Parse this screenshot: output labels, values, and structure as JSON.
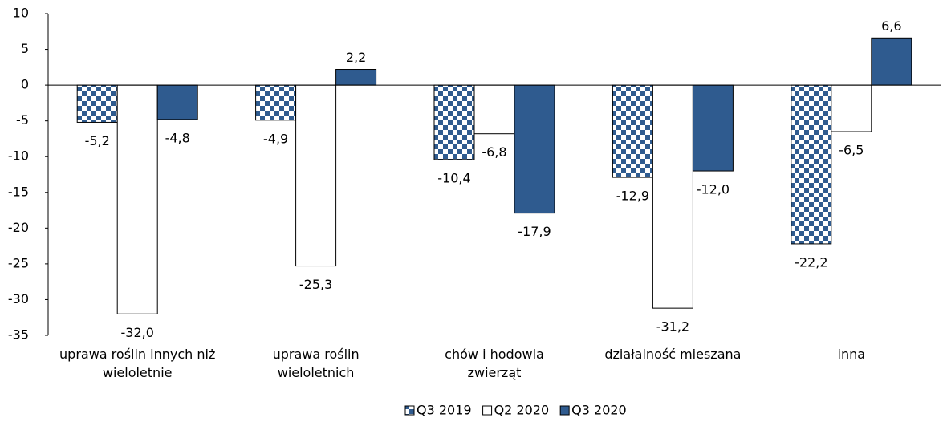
{
  "chart_data": {
    "type": "bar",
    "categories": [
      "uprawa roślin innych niż wieloletnie",
      "uprawa roślin wieloletnich",
      "chów i hodowla zwierząt",
      "działalność mieszana",
      "inna"
    ],
    "series": [
      {
        "name": "Q3 2019",
        "color": "#2f5b8f",
        "pattern": "checker",
        "values": [
          -5.2,
          -4.9,
          -10.4,
          -12.9,
          -22.2
        ],
        "value_labels": [
          "-5,2",
          "-4,9",
          "-10,4",
          "-12,9",
          "-22,2"
        ]
      },
      {
        "name": "Q2 2020",
        "color": "#ffffff",
        "values": [
          -32.0,
          -25.3,
          -6.8,
          -31.2,
          -6.5
        ],
        "value_labels": [
          "-32,0",
          "-25,3",
          "-6,8",
          "-31,2",
          "-6,5"
        ]
      },
      {
        "name": "Q3 2020",
        "color": "#2f5b8f",
        "values": [
          -4.8,
          2.2,
          -17.9,
          -12.0,
          6.6
        ],
        "value_labels": [
          "-4,8",
          "2,2",
          "-17,9",
          "-12,0",
          "6,6"
        ]
      }
    ],
    "ylim": [
      -35,
      10
    ],
    "yticks": [
      10,
      5,
      0,
      -5,
      -10,
      -15,
      -20,
      -25,
      -30,
      -35
    ],
    "legend": "bottom"
  }
}
